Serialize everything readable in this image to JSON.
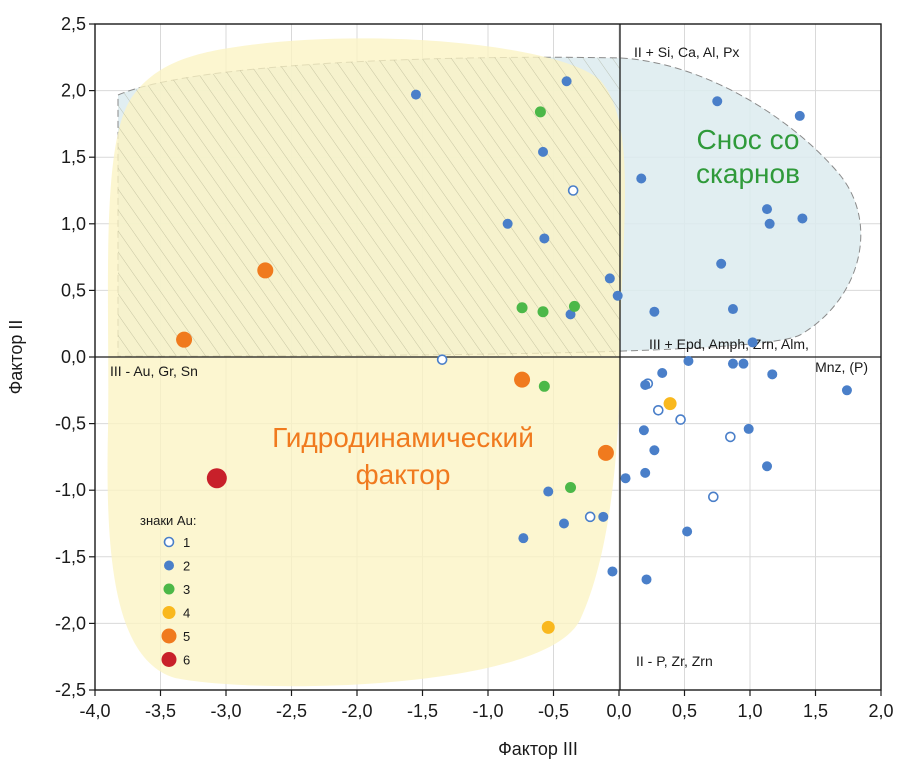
{
  "colors": {
    "accent_orange": "#f07a1e",
    "accent_green": "#2f9a3a",
    "region_yellow": "#fbf3c3",
    "region_blue": "#dcebef",
    "marker_blue": "#4a7fc9",
    "marker_green": "#4cb848",
    "marker_yellow": "#f9b81e",
    "marker_orange": "#f07a1e",
    "marker_red": "#c8202a"
  },
  "chart_data": {
    "type": "scatter",
    "xlabel": "Фактор III",
    "ylabel": "Фактор II",
    "xlim": [
      -4.0,
      2.0
    ],
    "ylim": [
      -2.5,
      2.5
    ],
    "x_ticks": [
      "-4,0",
      "-3,5",
      "-3,0",
      "-2,5",
      "-2,0",
      "-1,5",
      "-1,0",
      "-0,5",
      "0,0",
      "0,5",
      "1,0",
      "1,5",
      "2,0"
    ],
    "y_ticks": [
      "2,5",
      "2,0",
      "1,5",
      "1,0",
      "0,5",
      "0,0",
      "-0,5",
      "-1,0",
      "-1,5",
      "-2,0",
      "-2,5"
    ],
    "grid": true,
    "annotations": {
      "top_right": "II + Si, Ca, Al, Px",
      "right_line1": "III + Epd, Amph, Zrn, Alm,",
      "right_line2": "Mnz, (P)",
      "left": "III -  Au, Gr, Sn",
      "bottom": "II -  P, Zr, Zrn"
    },
    "regions": {
      "blue_label_line1": "Снос со",
      "blue_label_line2": "скарнов",
      "yellow_label_line1": "Гидродинамический",
      "yellow_label_line2": "фактор"
    },
    "legend": {
      "title": "знаки Au:",
      "placement": "bottom-left",
      "entries": [
        "1",
        "2",
        "3",
        "4",
        "5",
        "6"
      ]
    },
    "series": [
      {
        "name": "1",
        "marker": "hollow",
        "points": [
          [
            -0.35,
            1.25
          ],
          [
            -1.35,
            -0.02
          ],
          [
            0.22,
            -0.2
          ],
          [
            0.3,
            -0.4
          ],
          [
            0.47,
            -0.47
          ],
          [
            0.85,
            -0.6
          ],
          [
            0.72,
            -1.05
          ],
          [
            -0.22,
            -1.2
          ]
        ]
      },
      {
        "name": "2",
        "marker": "blue",
        "points": [
          [
            -1.55,
            1.97
          ],
          [
            -0.4,
            2.07
          ],
          [
            -0.58,
            1.54
          ],
          [
            -0.85,
            1.0
          ],
          [
            -0.57,
            0.89
          ],
          [
            -0.07,
            0.59
          ],
          [
            -0.01,
            0.46
          ],
          [
            -0.37,
            0.32
          ],
          [
            0.75,
            1.92
          ],
          [
            1.38,
            1.81
          ],
          [
            0.17,
            1.34
          ],
          [
            1.13,
            1.11
          ],
          [
            1.15,
            1.0
          ],
          [
            1.4,
            1.04
          ],
          [
            0.78,
            0.7
          ],
          [
            0.87,
            0.36
          ],
          [
            0.27,
            0.34
          ],
          [
            0.33,
            -0.12
          ],
          [
            0.53,
            -0.03
          ],
          [
            0.87,
            -0.05
          ],
          [
            0.95,
            -0.05
          ],
          [
            1.17,
            -0.13
          ],
          [
            1.02,
            0.11
          ],
          [
            1.74,
            -0.25
          ],
          [
            0.2,
            -0.21
          ],
          [
            0.19,
            -0.55
          ],
          [
            0.27,
            -0.7
          ],
          [
            0.99,
            -0.54
          ],
          [
            0.2,
            -0.87
          ],
          [
            0.05,
            -0.91
          ],
          [
            1.13,
            -0.82
          ],
          [
            -0.54,
            -1.01
          ],
          [
            -0.12,
            -1.2
          ],
          [
            -0.42,
            -1.25
          ],
          [
            -0.73,
            -1.36
          ],
          [
            0.52,
            -1.31
          ],
          [
            -0.05,
            -1.61
          ],
          [
            0.21,
            -1.67
          ]
        ]
      },
      {
        "name": "3",
        "marker": "green",
        "points": [
          [
            -0.6,
            1.84
          ],
          [
            -0.74,
            0.37
          ],
          [
            -0.58,
            0.34
          ],
          [
            -0.34,
            0.38
          ],
          [
            -0.57,
            -0.22
          ],
          [
            -0.37,
            -0.98
          ]
        ]
      },
      {
        "name": "4",
        "marker": "yellow",
        "points": [
          [
            0.39,
            -0.35
          ],
          [
            -0.54,
            -2.03
          ]
        ]
      },
      {
        "name": "5",
        "marker": "orange",
        "points": [
          [
            -2.7,
            0.65
          ],
          [
            -3.32,
            0.13
          ],
          [
            -0.74,
            -0.17
          ],
          [
            -0.1,
            -0.72
          ]
        ]
      },
      {
        "name": "6",
        "marker": "red",
        "points": [
          [
            -3.07,
            -0.91
          ]
        ]
      }
    ]
  }
}
